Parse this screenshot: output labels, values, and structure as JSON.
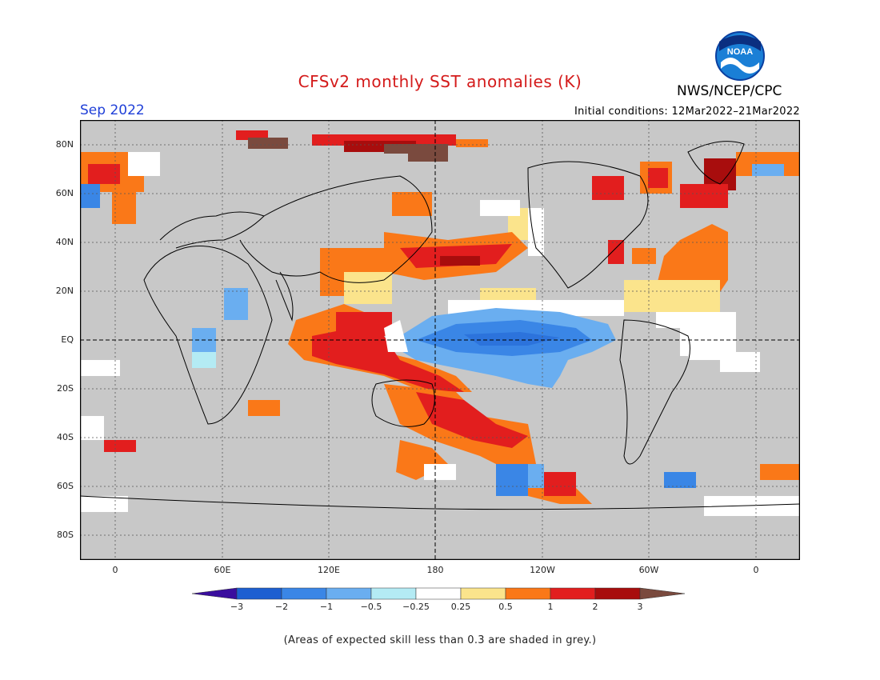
{
  "title": "CFSv2 monthly SST anomalies (K)",
  "target_month": "Sep 2022",
  "initial_conditions": "Initial conditions: 12Mar2022–21Mar2022",
  "agency": "NWS/NCEP/CPC",
  "logo_text": "NOAA",
  "lat_labels": [
    "80N",
    "60N",
    "40N",
    "20N",
    "EQ",
    "20S",
    "40S",
    "60S",
    "80S"
  ],
  "lon_labels": [
    "0",
    "60E",
    "120E",
    "180",
    "120W",
    "60W",
    "0"
  ],
  "colorbar": {
    "labels": [
      "−3",
      "−2",
      "−1",
      "−0.5",
      "−0.25",
      "0.25",
      "0.5",
      "1",
      "2",
      "3"
    ],
    "colors": [
      "#3a0e9e",
      "#1d5fd1",
      "#3a86e6",
      "#6aaef0",
      "#b4ebf4",
      "#ffffff",
      "#fbe48c",
      "#fa7818",
      "#e21e1e",
      "#a80d0d",
      "#7a4a3e"
    ]
  },
  "footnote": "(Areas of expected skill less than 0.3 are shaded in grey.)",
  "colors": {
    "grey_mask": "#c8c8c8",
    "title": "#d41a1a",
    "month": "#2040d8"
  }
}
